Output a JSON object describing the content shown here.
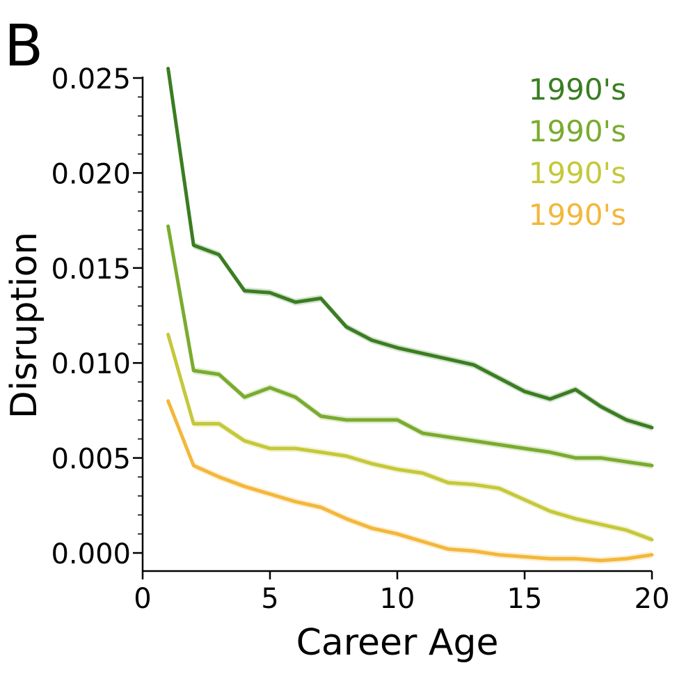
{
  "panel_label": "B",
  "chart_data": {
    "type": "line",
    "xlabel": "Career Age",
    "ylabel": "Disruption",
    "xlim": [
      0,
      20
    ],
    "ylim": [
      -0.0005,
      0.025
    ],
    "xticks": [
      0,
      5,
      10,
      15,
      20
    ],
    "xtick_labels": [
      "0",
      "5",
      "10",
      "15",
      "20"
    ],
    "yticks": [
      0,
      0.005,
      0.01,
      0.015,
      0.02,
      0.025
    ],
    "ytick_labels": [
      "0.000",
      "0.005",
      "0.010",
      "0.015",
      "0.020",
      "0.025"
    ],
    "grid": false,
    "legend_position": "top-right",
    "x": [
      1,
      2,
      3,
      4,
      5,
      6,
      7,
      8,
      9,
      10,
      11,
      12,
      13,
      14,
      15,
      16,
      17,
      18,
      19,
      20
    ],
    "series": [
      {
        "name": "1990's",
        "color": "#3a7d22",
        "values": [
          0.0255,
          0.0162,
          0.0157,
          0.0138,
          0.0137,
          0.0132,
          0.0134,
          0.0119,
          0.0112,
          0.0108,
          0.0105,
          0.0102,
          0.0099,
          0.0092,
          0.0085,
          0.0081,
          0.0086,
          0.0077,
          0.007,
          0.0066
        ]
      },
      {
        "name": "1990's",
        "color": "#7aab2f",
        "values": [
          0.0172,
          0.0096,
          0.0094,
          0.0082,
          0.0087,
          0.0082,
          0.0072,
          0.007,
          0.007,
          0.007,
          0.0063,
          0.0061,
          0.0059,
          0.0057,
          0.0055,
          0.0053,
          0.005,
          0.005,
          0.0048,
          0.0046
        ]
      },
      {
        "name": "1990's",
        "color": "#c5c83a",
        "values": [
          0.0115,
          0.0068,
          0.0068,
          0.0059,
          0.0055,
          0.0055,
          0.0053,
          0.0051,
          0.0047,
          0.0044,
          0.0042,
          0.0037,
          0.0036,
          0.0034,
          0.0028,
          0.0022,
          0.0018,
          0.0015,
          0.0012,
          0.0007
        ]
      },
      {
        "name": "1990's",
        "color": "#f3b73a",
        "values": [
          0.008,
          0.0046,
          0.004,
          0.0035,
          0.0031,
          0.0027,
          0.0024,
          0.0018,
          0.0013,
          0.001,
          0.0006,
          0.0002,
          0.0001,
          -0.0001,
          -0.0002,
          -0.0003,
          -0.0003,
          -0.0004,
          -0.0003,
          -0.0001
        ]
      }
    ]
  }
}
